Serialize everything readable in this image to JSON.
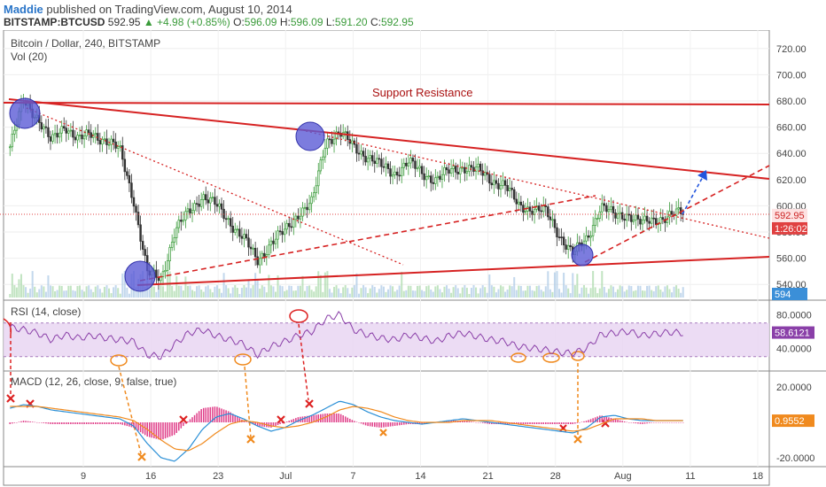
{
  "header": {
    "author": "Maddie",
    "published_text": "published on TradingView.com, August 10, 2014",
    "symbol": "BITSTAMP:BTCUSD",
    "last_price": "592.95",
    "change": "▲ +4.98 (+0.85%)",
    "o_label": "O:",
    "o_value": "596.09",
    "h_label": "H:",
    "h_value": "596.09",
    "l_label": "L:",
    "l_value": "591.20",
    "c_label": "C:",
    "c_value": "592.95"
  },
  "colors": {
    "up": "#3a9b3a",
    "down": "#333333",
    "trend": "#dd2222",
    "rsi": "#8a3fa8",
    "macd": "#2a8fd6",
    "signal": "#f08a1e",
    "hist": "#e0408a",
    "circle": "#5b5bd6"
  },
  "chart_data": [
    {
      "type": "candlestick",
      "title": "Bitcoin / Dollar, 240, BITSTAMP",
      "indicator_label": "Vol (20)",
      "annotation": "Support Resistance",
      "x_tick_labels": [
        "9",
        "16",
        "23",
        "Jul",
        "7",
        "14",
        "21",
        "28",
        "Aug",
        "11",
        "18"
      ],
      "y_ticks": [
        "720.00",
        "700.00",
        "680.00",
        "660.00",
        "640.00",
        "620.00",
        "600.00",
        "580.00",
        "560.00",
        "540.00"
      ],
      "ylim": [
        530,
        730
      ],
      "price_tags": [
        {
          "label": "592.95",
          "bg": "#fde2e2",
          "fg": "#cc2222"
        },
        {
          "label": "1:26:02",
          "bg": "#e04040",
          "fg": "#ffffff"
        },
        {
          "label": "594",
          "bg": "#3b8fd8",
          "fg": "#ffffff"
        }
      ],
      "ohlc_path": [
        [
          0,
          645
        ],
        [
          1,
          680
        ],
        [
          2,
          668
        ],
        [
          3,
          648
        ],
        [
          4,
          662
        ],
        [
          5,
          650
        ],
        [
          6,
          655
        ],
        [
          7,
          650
        ],
        [
          8,
          642
        ],
        [
          9,
          605
        ],
        [
          10,
          548
        ],
        [
          11,
          545
        ],
        [
          12,
          580
        ],
        [
          13,
          595
        ],
        [
          14,
          608
        ],
        [
          15,
          600
        ],
        [
          16,
          588
        ],
        [
          17,
          575
        ],
        [
          18,
          558
        ],
        [
          19,
          572
        ],
        [
          20,
          580
        ],
        [
          21,
          595
        ],
        [
          22,
          602
        ],
        [
          23,
          650
        ],
        [
          24,
          656
        ],
        [
          25,
          645
        ],
        [
          26,
          638
        ],
        [
          27,
          630
        ],
        [
          28,
          625
        ],
        [
          29,
          633
        ],
        [
          30,
          625
        ],
        [
          31,
          620
        ],
        [
          32,
          626
        ],
        [
          33,
          630
        ],
        [
          34,
          627
        ],
        [
          35,
          620
        ],
        [
          36,
          616
        ],
        [
          37,
          600
        ],
        [
          38,
          598
        ],
        [
          39,
          595
        ],
        [
          40,
          578
        ],
        [
          41,
          563
        ],
        [
          42,
          575
        ],
        [
          43,
          600
        ],
        [
          44,
          592
        ],
        [
          45,
          594
        ],
        [
          46,
          586
        ],
        [
          47,
          590
        ],
        [
          48,
          592
        ],
        [
          49,
          595
        ]
      ]
    },
    {
      "type": "line",
      "title": "RSI (14, close)",
      "y_ticks": [
        "80.0000",
        "40.0000"
      ],
      "ylim": [
        15,
        95
      ],
      "band": [
        30,
        70
      ],
      "last_value_tag": "58.6121",
      "values": [
        65,
        62,
        58,
        50,
        56,
        52,
        55,
        52,
        50,
        48,
        32,
        30,
        45,
        58,
        62,
        55,
        50,
        45,
        32,
        42,
        48,
        55,
        60,
        75,
        80,
        62,
        56,
        52,
        50,
        56,
        52,
        48,
        55,
        58,
        54,
        50,
        48,
        42,
        40,
        38,
        35,
        34,
        40,
        56,
        58,
        60,
        55,
        57,
        59,
        58
      ]
    },
    {
      "type": "line",
      "title": "MACD (12, 26, close, 9, false, true)",
      "y_ticks": [
        "20.0000",
        "-20.0000"
      ],
      "ylim": [
        -24,
        28
      ],
      "last_value_tag": "0.9552",
      "series": [
        {
          "values": [
            8,
            10,
            9,
            7,
            6,
            5,
            4,
            3,
            2,
            -2,
            -12,
            -20,
            -22,
            -15,
            -4,
            3,
            5,
            2,
            -2,
            -5,
            -3,
            1,
            4,
            8,
            12,
            10,
            6,
            3,
            1,
            0,
            -1,
            0,
            1,
            2,
            1,
            0,
            -1,
            -2,
            -3,
            -4,
            -5,
            -6,
            -3,
            3,
            4,
            2,
            1,
            1,
            1,
            1
          ]
        },
        {
          "values": [
            9,
            9,
            9,
            8,
            7,
            6,
            5,
            4,
            3,
            1,
            -4,
            -10,
            -15,
            -16,
            -12,
            -6,
            -1,
            1,
            0,
            -2,
            -3,
            -2,
            0,
            3,
            7,
            9,
            8,
            6,
            3,
            1,
            0,
            0,
            0,
            1,
            1,
            1,
            0,
            -1,
            -2,
            -3,
            -4,
            -5,
            -4,
            -1,
            2,
            2,
            2,
            1,
            1,
            1
          ]
        }
      ],
      "histogram": [
        -1,
        1,
        0,
        -1,
        -1,
        -1,
        -1,
        -1,
        -1,
        -3,
        -8,
        -10,
        -7,
        1,
        8,
        9,
        6,
        1,
        -2,
        -3,
        0,
        3,
        4,
        5,
        5,
        1,
        -2,
        -3,
        -2,
        -1,
        -1,
        0,
        1,
        1,
        0,
        -1,
        -1,
        -1,
        -1,
        -1,
        -1,
        -1,
        1,
        4,
        2,
        0,
        -1,
        0,
        0,
        0
      ]
    }
  ]
}
